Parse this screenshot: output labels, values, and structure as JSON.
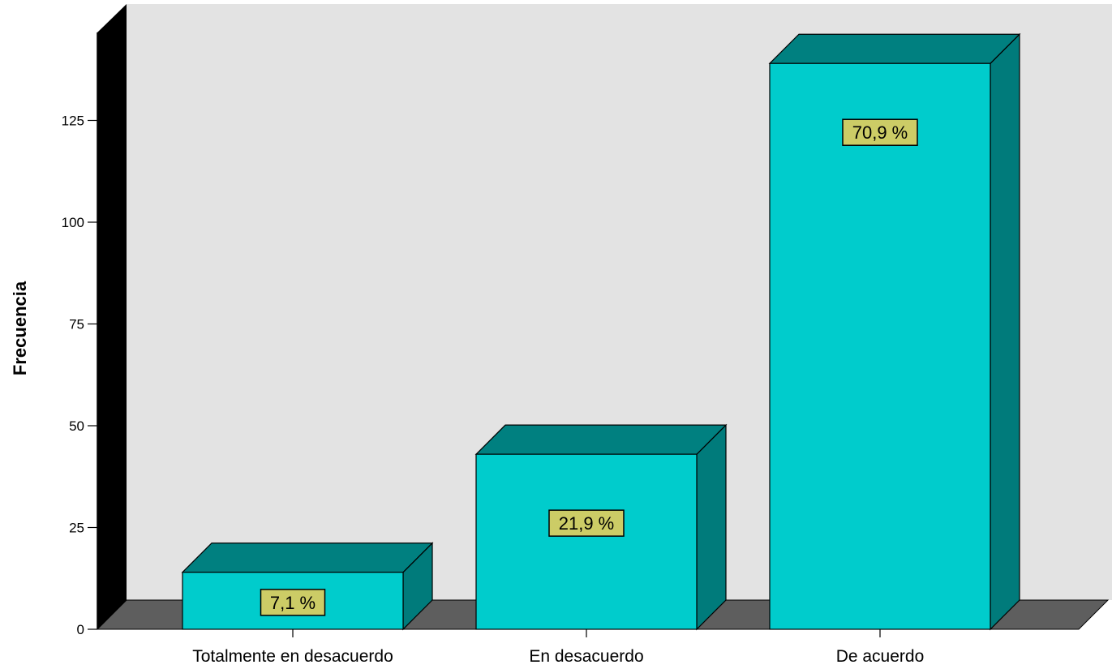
{
  "chart_data": {
    "type": "bar",
    "style": "3d",
    "categories": [
      "Totalmente en desacuerdo",
      "En desacuerdo",
      "De acuerdo"
    ],
    "values": [
      14,
      43,
      139
    ],
    "data_labels": [
      "7,1 %",
      "21,9 %",
      "70,9 %"
    ],
    "ylabel": "Frecuencia",
    "xlabel": "",
    "ylim": [
      0,
      150
    ],
    "yticks": [
      0,
      25,
      50,
      75,
      100,
      125
    ],
    "ytick_labels": [
      "0",
      "25",
      "50",
      "75",
      "100",
      "125"
    ],
    "grid": false,
    "legend": "none",
    "colors": {
      "bar_front": "#00CCCC",
      "bar_top": "#008080",
      "bar_side": "#007B7B",
      "back_wall": "#E3E3E3",
      "floor": "#5E5E5E",
      "left_wall": "#000000",
      "label_box": "#CCCC66"
    }
  }
}
